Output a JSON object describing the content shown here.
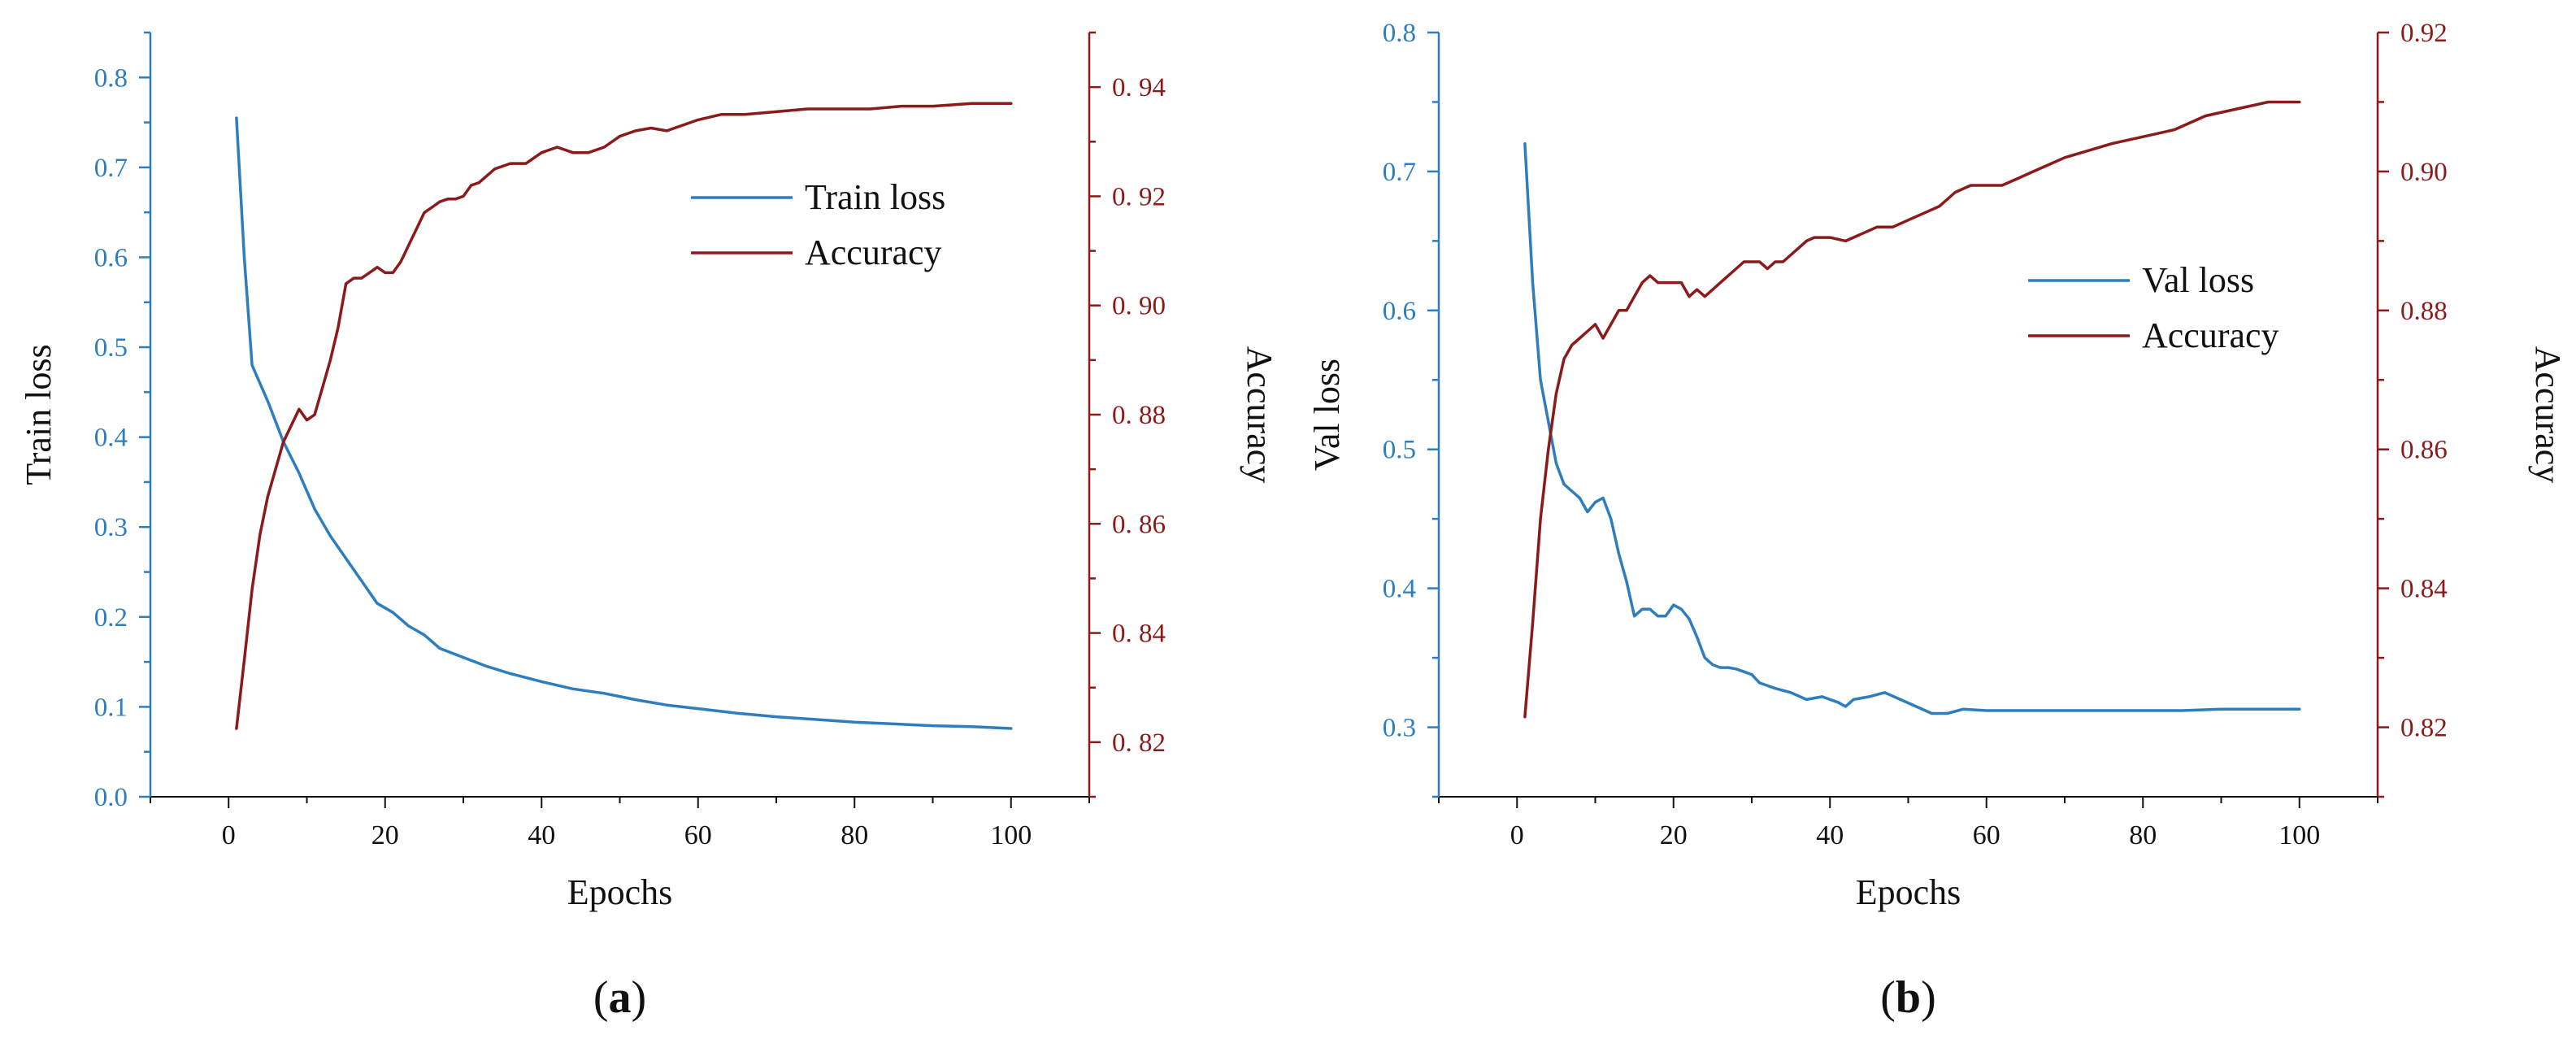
{
  "colors": {
    "loss": "#2e7ebf",
    "accuracy": "#8b1a1a",
    "axis": "#111111",
    "text": "#111111"
  },
  "chart_data": [
    {
      "type": "line",
      "panel_label": "(a)",
      "xlabel": "Epochs",
      "ylabel_left": "Train loss",
      "ylabel_right": "Accuracy",
      "xlim": [
        -10,
        110
      ],
      "xticks": [
        0,
        20,
        40,
        60,
        80,
        100
      ],
      "ylim_left": [
        0,
        0.85
      ],
      "yticks_left": [
        0.0,
        0.1,
        0.2,
        0.3,
        0.4,
        0.5,
        0.6,
        0.7,
        0.8
      ],
      "ytick_labels_left": [
        "0.0",
        "0.1",
        "0.2",
        "0.3",
        "0.4",
        "0.5",
        "0.6",
        "0.7",
        "0.8"
      ],
      "ylim_right": [
        0.81,
        0.95
      ],
      "yticks_right": [
        0.82,
        0.84,
        0.86,
        0.88,
        0.9,
        0.92,
        0.94
      ],
      "ytick_labels_right": [
        "0. 82",
        "0. 84",
        "0. 86",
        "0. 88",
        "0. 90",
        "0. 92",
        "0. 94"
      ],
      "legend_position": "top-right",
      "series": [
        {
          "name": "Train loss",
          "axis": "left",
          "color": "#2e7ebf",
          "x": [
            1,
            2,
            3,
            5,
            7,
            9,
            11,
            13,
            15,
            17,
            19,
            21,
            23,
            25,
            27,
            30,
            33,
            36,
            40,
            44,
            48,
            52,
            56,
            60,
            65,
            70,
            75,
            80,
            85,
            90,
            95,
            100
          ],
          "y": [
            0.755,
            0.6,
            0.48,
            0.44,
            0.395,
            0.36,
            0.32,
            0.29,
            0.265,
            0.24,
            0.215,
            0.205,
            0.19,
            0.18,
            0.165,
            0.155,
            0.145,
            0.137,
            0.128,
            0.12,
            0.115,
            0.108,
            0.102,
            0.098,
            0.093,
            0.089,
            0.086,
            0.083,
            0.081,
            0.079,
            0.078,
            0.076
          ]
        },
        {
          "name": "Accuracy",
          "axis": "right",
          "color": "#8b1a1a",
          "x": [
            1,
            2,
            3,
            4,
            5,
            6,
            7,
            8,
            9,
            10,
            11,
            12,
            13,
            14,
            15,
            16,
            17,
            18,
            19,
            20,
            21,
            22,
            23,
            24,
            25,
            26,
            27,
            28,
            29,
            30,
            31,
            32,
            34,
            36,
            38,
            40,
            42,
            44,
            46,
            48,
            50,
            52,
            54,
            56,
            58,
            60,
            63,
            66,
            70,
            74,
            78,
            82,
            86,
            90,
            95,
            100
          ],
          "y": [
            0.8225,
            0.835,
            0.848,
            0.858,
            0.865,
            0.87,
            0.875,
            0.878,
            0.881,
            0.879,
            0.88,
            0.885,
            0.89,
            0.896,
            0.904,
            0.905,
            0.905,
            0.906,
            0.907,
            0.906,
            0.906,
            0.908,
            0.911,
            0.914,
            0.917,
            0.918,
            0.919,
            0.9195,
            0.9195,
            0.92,
            0.922,
            0.9225,
            0.925,
            0.926,
            0.926,
            0.928,
            0.929,
            0.928,
            0.928,
            0.929,
            0.931,
            0.932,
            0.9325,
            0.932,
            0.933,
            0.934,
            0.935,
            0.935,
            0.9355,
            0.936,
            0.936,
            0.936,
            0.9365,
            0.9365,
            0.937,
            0.937
          ]
        }
      ]
    },
    {
      "type": "line",
      "panel_label": "(b)",
      "xlabel": "Epochs",
      "ylabel_left": "Val loss",
      "ylabel_right": "Accuracy",
      "xlim": [
        -10,
        110
      ],
      "xticks": [
        0,
        20,
        40,
        60,
        80,
        100
      ],
      "ylim_left": [
        0.25,
        0.8
      ],
      "yticks_left": [
        0.3,
        0.4,
        0.5,
        0.6,
        0.7,
        0.8
      ],
      "ytick_labels_left": [
        "0.3",
        "0.4",
        "0.5",
        "0.6",
        "0.7",
        "0.8"
      ],
      "ylim_right": [
        0.81,
        0.92
      ],
      "yticks_right": [
        0.82,
        0.84,
        0.86,
        0.88,
        0.9,
        0.92
      ],
      "ytick_labels_right": [
        "0.82",
        "0.84",
        "0.86",
        "0.88",
        "0.90",
        "0.92"
      ],
      "legend_position": "center-right",
      "series": [
        {
          "name": "Val loss",
          "axis": "left",
          "color": "#2e7ebf",
          "x": [
            1,
            2,
            3,
            4,
            5,
            6,
            7,
            8,
            9,
            10,
            11,
            12,
            13,
            14,
            15,
            16,
            17,
            18,
            19,
            20,
            21,
            22,
            23,
            24,
            25,
            26,
            27,
            28,
            29,
            30,
            31,
            33,
            35,
            37,
            39,
            41,
            42,
            43,
            45,
            47,
            49,
            51,
            53,
            55,
            57,
            60,
            63,
            66,
            70,
            75,
            80,
            85,
            90,
            95,
            100
          ],
          "y": [
            0.72,
            0.62,
            0.55,
            0.52,
            0.49,
            0.475,
            0.47,
            0.465,
            0.455,
            0.462,
            0.465,
            0.45,
            0.425,
            0.405,
            0.38,
            0.385,
            0.385,
            0.38,
            0.38,
            0.388,
            0.385,
            0.378,
            0.365,
            0.35,
            0.345,
            0.343,
            0.343,
            0.342,
            0.34,
            0.338,
            0.332,
            0.328,
            0.325,
            0.32,
            0.322,
            0.318,
            0.315,
            0.32,
            0.322,
            0.325,
            0.32,
            0.315,
            0.31,
            0.31,
            0.313,
            0.312,
            0.312,
            0.312,
            0.312,
            0.312,
            0.312,
            0.312,
            0.313,
            0.313,
            0.313
          ]
        },
        {
          "name": "Accuracy",
          "axis": "right",
          "color": "#8b1a1a",
          "x": [
            1,
            2,
            3,
            4,
            5,
            6,
            7,
            8,
            9,
            10,
            11,
            12,
            13,
            14,
            15,
            16,
            17,
            18,
            19,
            20,
            21,
            22,
            23,
            24,
            25,
            26,
            27,
            28,
            29,
            30,
            31,
            32,
            33,
            34,
            35,
            36,
            37,
            38,
            40,
            42,
            44,
            46,
            48,
            50,
            52,
            54,
            56,
            58,
            60,
            62,
            64,
            66,
            68,
            70,
            73,
            76,
            80,
            84,
            88,
            92,
            96,
            100
          ],
          "y": [
            0.8215,
            0.835,
            0.85,
            0.86,
            0.868,
            0.873,
            0.875,
            0.876,
            0.877,
            0.878,
            0.876,
            0.878,
            0.88,
            0.88,
            0.882,
            0.884,
            0.885,
            0.884,
            0.884,
            0.884,
            0.884,
            0.882,
            0.883,
            0.882,
            0.883,
            0.884,
            0.885,
            0.886,
            0.887,
            0.887,
            0.887,
            0.886,
            0.887,
            0.887,
            0.888,
            0.889,
            0.89,
            0.8905,
            0.8905,
            0.89,
            0.891,
            0.892,
            0.892,
            0.893,
            0.894,
            0.895,
            0.897,
            0.898,
            0.898,
            0.898,
            0.899,
            0.9,
            0.901,
            0.902,
            0.903,
            0.904,
            0.905,
            0.906,
            0.908,
            0.909,
            0.91,
            0.91
          ]
        }
      ]
    }
  ]
}
